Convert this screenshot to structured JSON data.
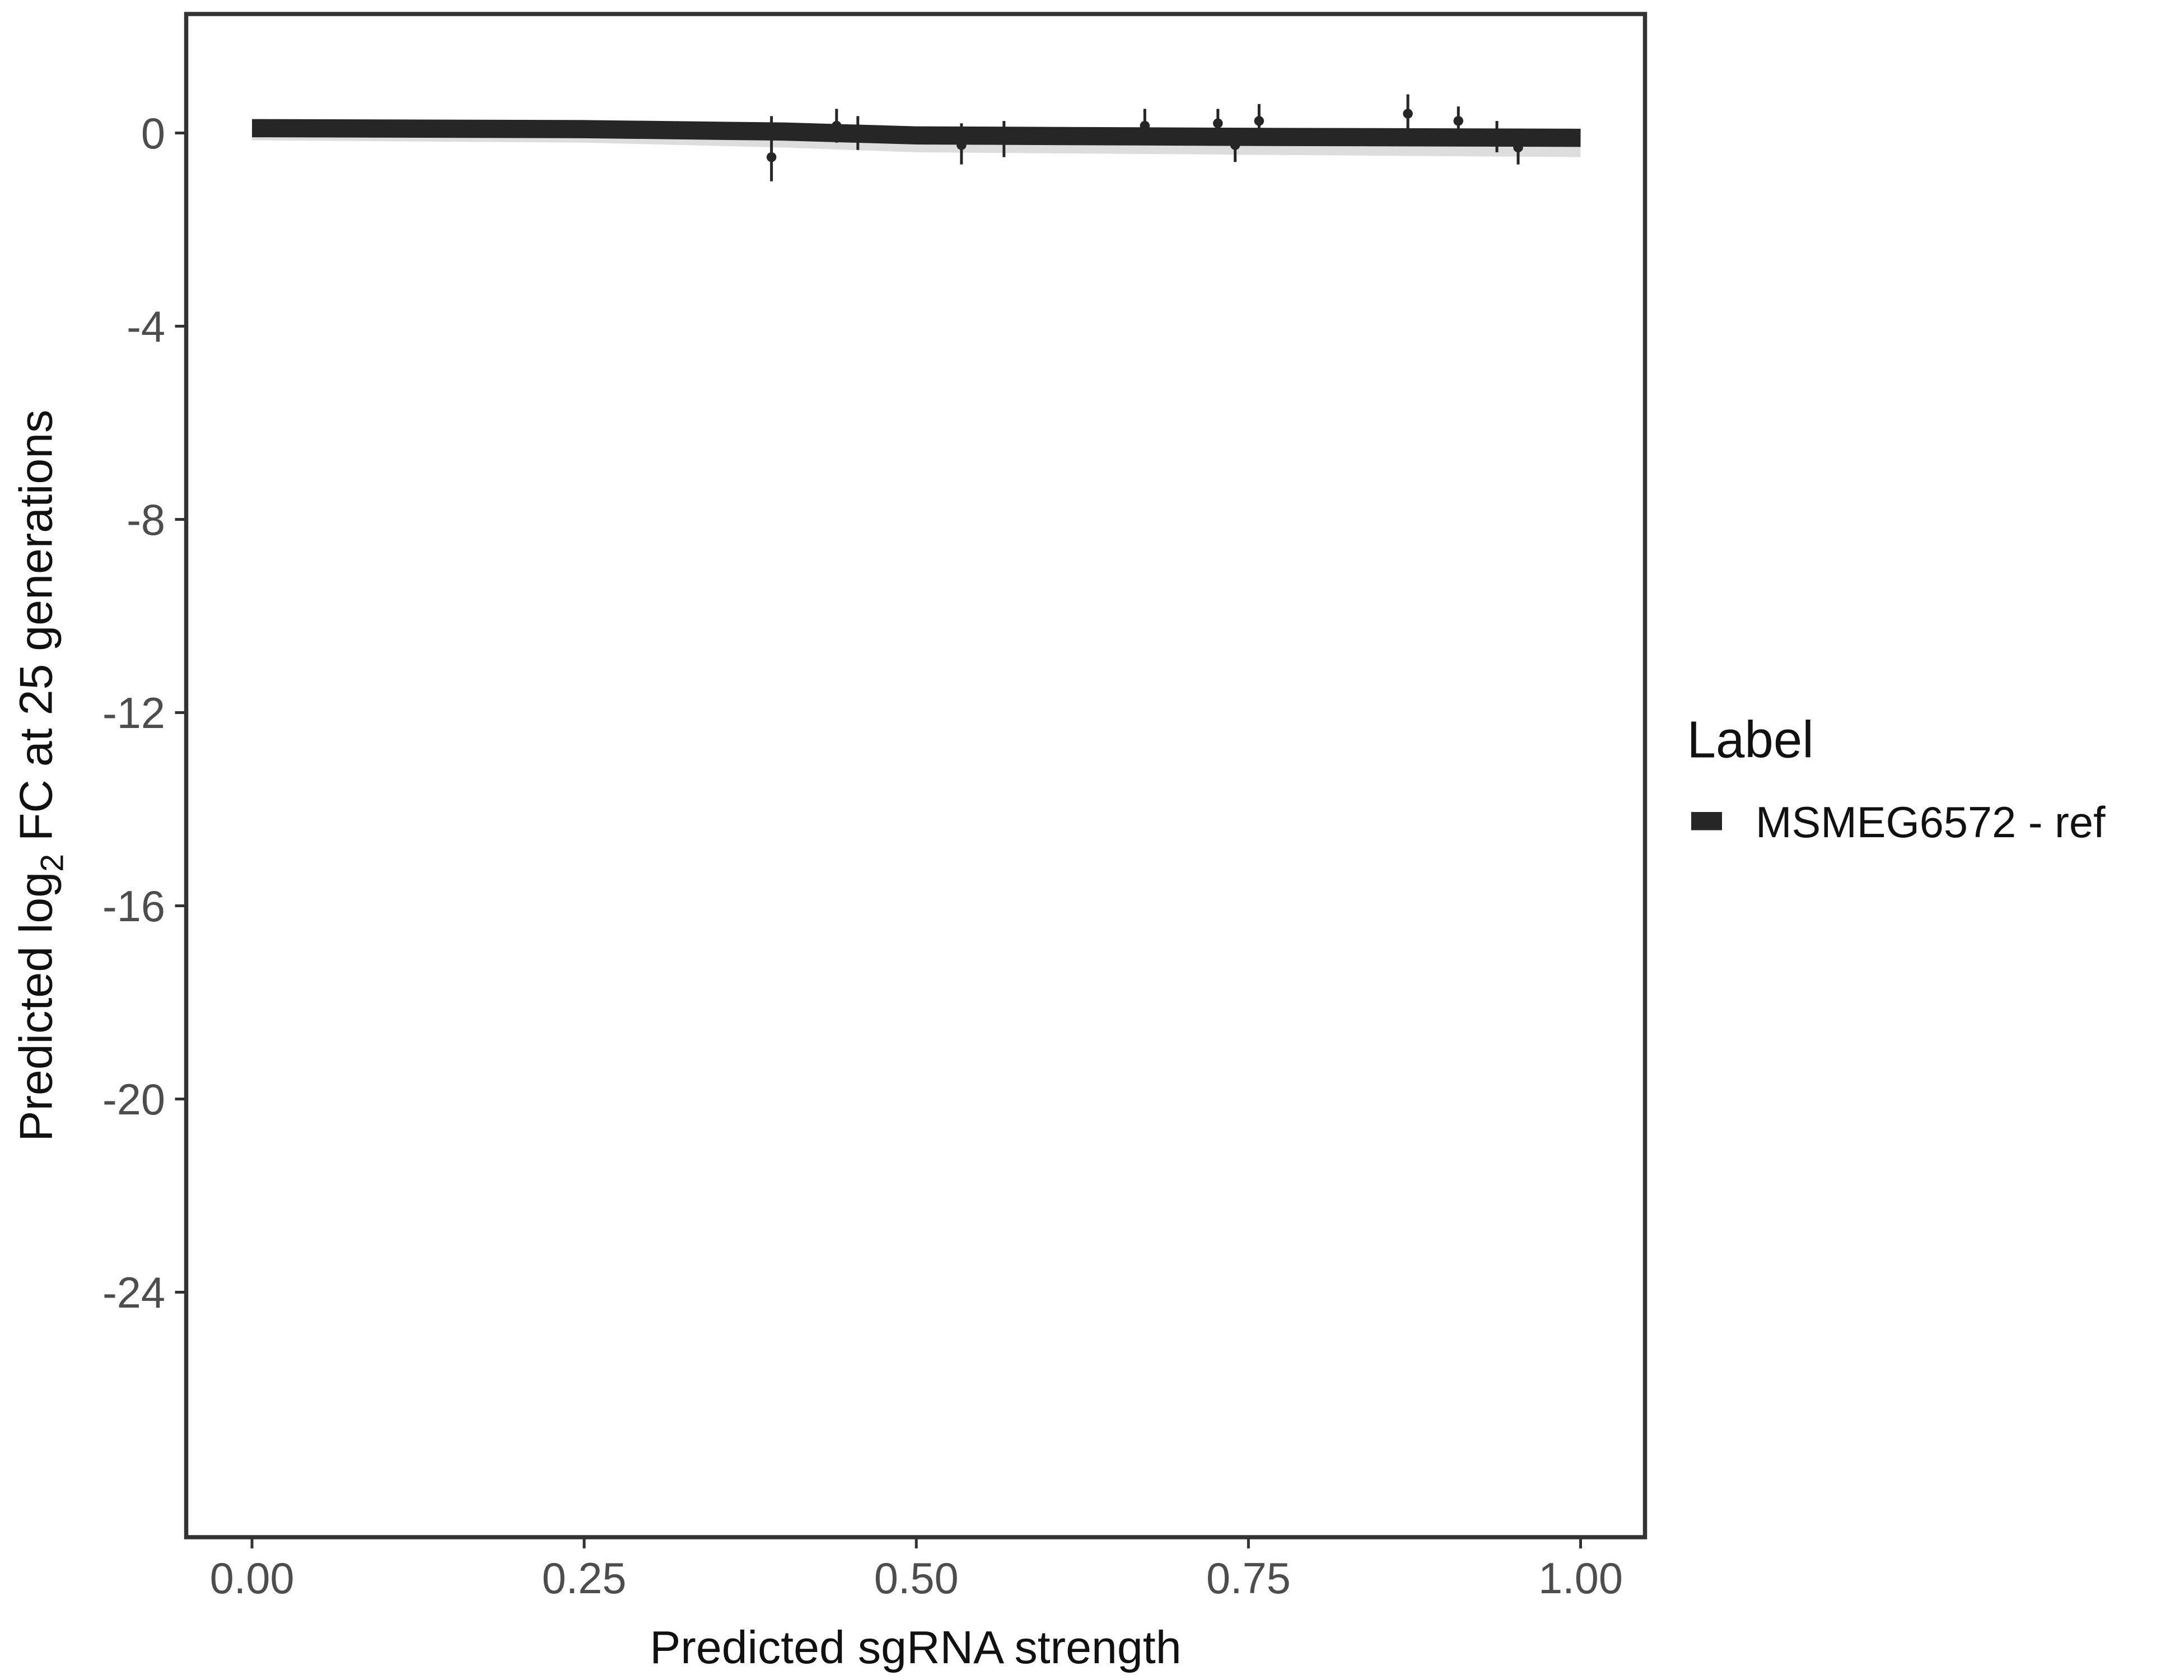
{
  "chart_data": {
    "type": "line",
    "title": "",
    "xlabel": "Predicted sgRNA strength",
    "ylabel_parts": {
      "pre": "Predicted  log",
      "sub": "2",
      "post": " FC at 25 generations"
    },
    "xlim": [
      -0.02,
      1.02
    ],
    "ylim": [
      -29.5,
      2.5
    ],
    "xticks": [
      0,
      0.25,
      0.5,
      0.75,
      1
    ],
    "xtick_labels": [
      "0.00",
      "0.25",
      "0.50",
      "0.75",
      "1.00"
    ],
    "yticks": [
      0,
      -4,
      -8,
      -12,
      -16,
      -20,
      -24
    ],
    "ytick_labels": [
      "0",
      "-4",
      "-8",
      "-12",
      "-16",
      "-20",
      "-24"
    ],
    "grid": false,
    "legend": {
      "title": "Label",
      "position": "right",
      "entries": [
        {
          "name": "MSMEG6572 - ref",
          "color": "#262626"
        }
      ]
    },
    "series": [
      {
        "name": "MSMEG6572 - ref",
        "color": "#262626",
        "fit_line": {
          "x": [
            0,
            0.25,
            0.4,
            0.5,
            0.75,
            1.0
          ],
          "y": [
            0.1,
            0.08,
            0.03,
            -0.05,
            -0.08,
            -0.1
          ]
        },
        "ribbon": {
          "x": [
            0,
            0.25,
            0.4,
            0.5,
            0.75,
            1.0
          ],
          "lower": [
            -0.15,
            -0.2,
            -0.3,
            -0.4,
            -0.45,
            -0.5
          ],
          "upper": [
            0.12,
            0.1,
            0.05,
            -0.02,
            -0.05,
            -0.07
          ]
        },
        "points": [
          {
            "x": 0.391,
            "y": -0.5,
            "lo": -1.0,
            "hi": 0.35
          },
          {
            "x": 0.44,
            "y": 0.15,
            "lo": -0.2,
            "hi": 0.5
          },
          {
            "x": 0.456,
            "y": 0.0,
            "lo": -0.35,
            "hi": 0.35
          },
          {
            "x": 0.534,
            "y": -0.25,
            "lo": -0.65,
            "hi": 0.2
          },
          {
            "x": 0.566,
            "y": -0.1,
            "lo": -0.5,
            "hi": 0.25
          },
          {
            "x": 0.672,
            "y": 0.15,
            "lo": -0.1,
            "hi": 0.5
          },
          {
            "x": 0.727,
            "y": 0.2,
            "lo": -0.05,
            "hi": 0.5
          },
          {
            "x": 0.74,
            "y": -0.25,
            "lo": -0.6,
            "hi": 0.0
          },
          {
            "x": 0.758,
            "y": 0.25,
            "lo": -0.05,
            "hi": 0.6
          },
          {
            "x": 0.87,
            "y": 0.4,
            "lo": -0.05,
            "hi": 0.8
          },
          {
            "x": 0.908,
            "y": 0.25,
            "lo": -0.05,
            "hi": 0.55
          },
          {
            "x": 0.937,
            "y": -0.1,
            "lo": -0.4,
            "hi": 0.25
          },
          {
            "x": 0.953,
            "y": -0.3,
            "lo": -0.65,
            "hi": 0.0
          }
        ]
      }
    ]
  }
}
